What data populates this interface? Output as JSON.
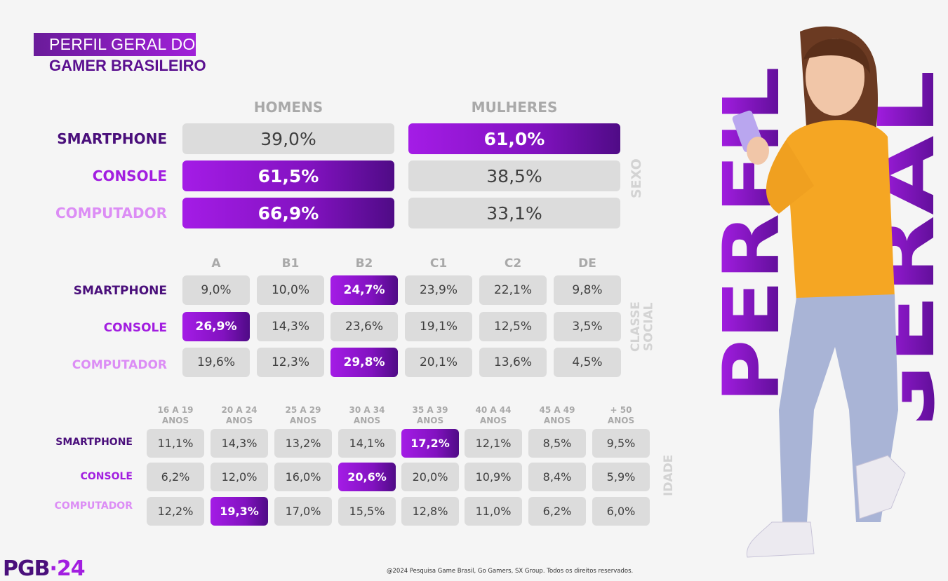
{
  "title": {
    "line1": "PERFIL GERAL DO",
    "line2": "GAMER BRASILEIRO"
  },
  "big_title": {
    "word1": "PERFIL",
    "word2": "GERAL"
  },
  "sexo": {
    "side_label": "SEXO",
    "columns": [
      "HOMENS",
      "MULHERES"
    ],
    "rows": [
      {
        "label": "SMARTPHONE",
        "values": [
          "39,0%",
          "61,0%"
        ]
      },
      {
        "label": "CONSOLE",
        "values": [
          "61,5%",
          "38,5%"
        ]
      },
      {
        "label": "COMPUTADOR",
        "values": [
          "66,9%",
          "33,1%"
        ]
      }
    ]
  },
  "classe": {
    "side_label_1": "CLASSE",
    "side_label_2": "SOCIAL",
    "columns": [
      "A",
      "B1",
      "B2",
      "C1",
      "C2",
      "DE"
    ],
    "rows": [
      {
        "label": "SMARTPHONE",
        "values": [
          "9,0%",
          "10,0%",
          "24,7%",
          "23,9%",
          "22,1%",
          "9,8%"
        ]
      },
      {
        "label": "CONSOLE",
        "values": [
          "26,9%",
          "14,3%",
          "23,6%",
          "19,1%",
          "12,5%",
          "3,5%"
        ]
      },
      {
        "label": "COMPUTADOR",
        "values": [
          "19,6%",
          "12,3%",
          "29,8%",
          "20,1%",
          "13,6%",
          "4,5%"
        ]
      }
    ]
  },
  "idade": {
    "side_label": "IDADE",
    "columns": [
      {
        "l1": "16 A 19",
        "l2": "ANOS"
      },
      {
        "l1": "20 A 24",
        "l2": "ANOS"
      },
      {
        "l1": "25 A 29",
        "l2": "ANOS"
      },
      {
        "l1": "30 A 34",
        "l2": "ANOS"
      },
      {
        "l1": "35 A 39",
        "l2": "ANOS"
      },
      {
        "l1": "40 A 44",
        "l2": "ANOS"
      },
      {
        "l1": "45 A 49",
        "l2": "ANOS"
      },
      {
        "l1": "+ 50",
        "l2": "ANOS"
      }
    ],
    "rows": [
      {
        "label": "SMARTPHONE",
        "values": [
          "11,1%",
          "14,3%",
          "13,2%",
          "14,1%",
          "17,2%",
          "12,1%",
          "8,5%",
          "9,5%"
        ]
      },
      {
        "label": "CONSOLE",
        "values": [
          "6,2%",
          "12,0%",
          "16,0%",
          "20,6%",
          "20,0%",
          "10,9%",
          "8,4%",
          "5,9%"
        ]
      },
      {
        "label": "COMPUTADOR",
        "values": [
          "12,2%",
          "19,3%",
          "17,0%",
          "15,5%",
          "12,8%",
          "11,0%",
          "6,2%",
          "6,0%"
        ]
      }
    ]
  },
  "footer": "@2024 Pesquisa Game Brasil, Go Gamers, SX Group. Todos os direitos reservados.",
  "logo": {
    "text": "PGB",
    "dot": "·",
    "year": "24"
  },
  "colors": {
    "smartphone": "#4a0f7b",
    "console": "#a21ee0",
    "computador": "#dc8df5",
    "highlight": "#8212c0"
  }
}
